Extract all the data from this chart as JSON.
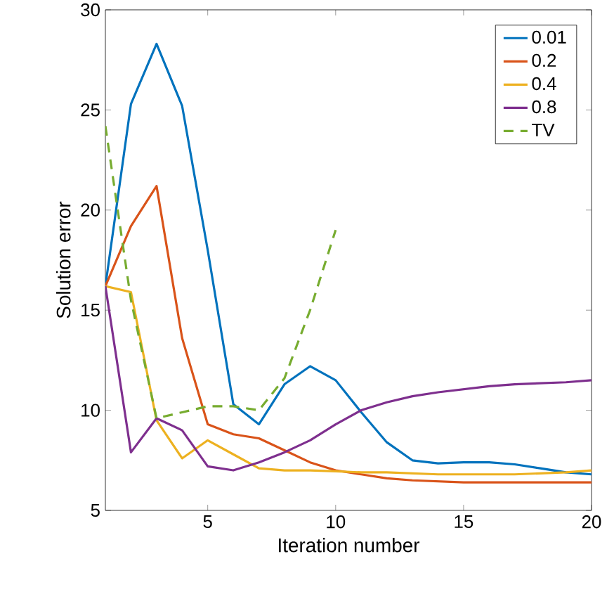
{
  "chart_data": {
    "type": "line",
    "xlabel": "Iteration number",
    "ylabel": "Solution error",
    "x": [
      1,
      2,
      3,
      4,
      5,
      6,
      7,
      8,
      9,
      10,
      11,
      12,
      13,
      14,
      15,
      16,
      17,
      18,
      19,
      20
    ],
    "xlim": [
      1,
      20
    ],
    "xticks": [
      5,
      10,
      15,
      20
    ],
    "ylim": [
      5,
      30
    ],
    "yticks": [
      5,
      10,
      15,
      20,
      25,
      30
    ],
    "grid": false,
    "legend": "top right",
    "marker": "none",
    "line_style": "solid",
    "series": [
      {
        "name": "0.01",
        "color": "#0072bd",
        "values": [
          16.2,
          25.3,
          28.3,
          25.2,
          18.0,
          10.3,
          9.3,
          11.3,
          12.2,
          11.5,
          9.9,
          8.4,
          7.5,
          7.35,
          7.4,
          7.4,
          7.3,
          7.1,
          6.9,
          6.8
        ]
      },
      {
        "name": "0.2",
        "color": "#d95319",
        "values": [
          16.2,
          19.2,
          21.2,
          13.6,
          9.3,
          8.8,
          8.6,
          8.0,
          7.4,
          7.0,
          6.8,
          6.6,
          6.5,
          6.45,
          6.4,
          6.4,
          6.4,
          6.4,
          6.4,
          6.4
        ]
      },
      {
        "name": "0.4",
        "color": "#edb120",
        "values": [
          16.2,
          15.9,
          9.5,
          7.6,
          8.5,
          7.8,
          7.1,
          7.0,
          7.0,
          6.95,
          6.9,
          6.9,
          6.85,
          6.8,
          6.8,
          6.8,
          6.8,
          6.85,
          6.9,
          7.0
        ]
      },
      {
        "name": "0.8",
        "color": "#7e2f8e",
        "values": [
          16.2,
          7.9,
          9.6,
          9.0,
          7.2,
          7.0,
          7.4,
          7.9,
          8.5,
          9.3,
          10.0,
          10.4,
          10.7,
          10.9,
          11.05,
          11.2,
          11.3,
          11.35,
          11.4,
          11.5
        ]
      },
      {
        "name": "TV",
        "color": "#77ac30",
        "line_style": "dashed",
        "x": [
          1,
          2,
          3,
          4,
          5,
          6,
          7,
          8,
          9,
          10
        ],
        "values": [
          24.2,
          15.5,
          9.6,
          9.9,
          10.2,
          10.2,
          10.0,
          11.6,
          15.0,
          19.0
        ]
      }
    ]
  }
}
